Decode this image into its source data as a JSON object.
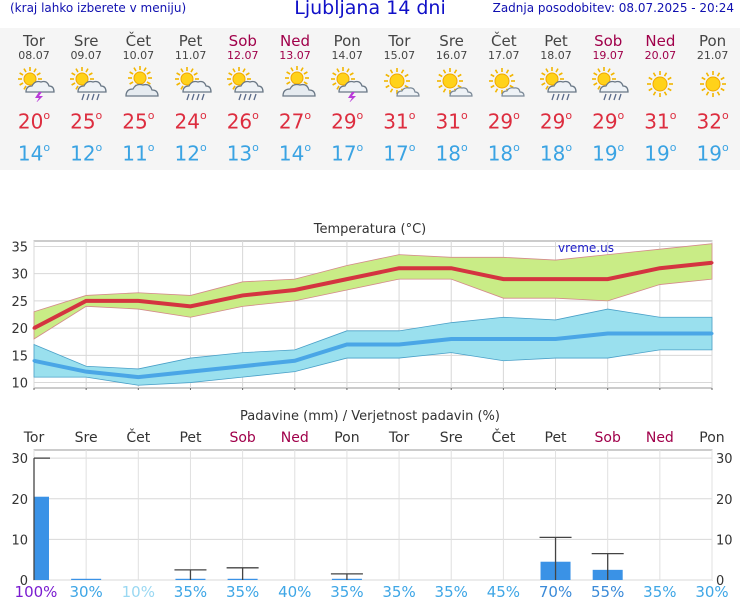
{
  "header": {
    "hint": "(kraj lahko izberete v meniju)",
    "title": "Ljubljana 14 dni",
    "updated": "Zadnja posodobitev: 08.07.2025 - 20:24"
  },
  "days": [
    {
      "name": "Tor",
      "date": "08.07",
      "weekend": false,
      "icon": "sun-cloud-thunder-icon",
      "max": "20",
      "min": "14"
    },
    {
      "name": "Sre",
      "date": "09.07",
      "weekend": false,
      "icon": "sun-cloud-rain-icon",
      "max": "25",
      "min": "12"
    },
    {
      "name": "Čet",
      "date": "10.07",
      "weekend": false,
      "icon": "sun-cloud-icon",
      "max": "25",
      "min": "11"
    },
    {
      "name": "Pet",
      "date": "11.07",
      "weekend": false,
      "icon": "sun-cloud-rain-icon",
      "max": "24",
      "min": "12"
    },
    {
      "name": "Sob",
      "date": "12.07",
      "weekend": true,
      "icon": "sun-cloud-rain-icon",
      "max": "26",
      "min": "13"
    },
    {
      "name": "Ned",
      "date": "13.07",
      "weekend": true,
      "icon": "sun-cloud-icon",
      "max": "27",
      "min": "14"
    },
    {
      "name": "Pon",
      "date": "14.07",
      "weekend": false,
      "icon": "sun-cloud-thunder-icon",
      "max": "29",
      "min": "17"
    },
    {
      "name": "Tor",
      "date": "15.07",
      "weekend": false,
      "icon": "sun-small-cloud-icon",
      "max": "31",
      "min": "17"
    },
    {
      "name": "Sre",
      "date": "16.07",
      "weekend": false,
      "icon": "sun-small-cloud-icon",
      "max": "31",
      "min": "18"
    },
    {
      "name": "Čet",
      "date": "17.07",
      "weekend": false,
      "icon": "sun-small-cloud-icon",
      "max": "29",
      "min": "18"
    },
    {
      "name": "Pet",
      "date": "18.07",
      "weekend": false,
      "icon": "sun-cloud-rain-icon",
      "max": "29",
      "min": "18"
    },
    {
      "name": "Sob",
      "date": "19.07",
      "weekend": true,
      "icon": "sun-cloud-rain-icon",
      "max": "29",
      "min": "19"
    },
    {
      "name": "Ned",
      "date": "20.07",
      "weekend": true,
      "icon": "sun-icon",
      "max": "31",
      "min": "19"
    },
    {
      "name": "Pon",
      "date": "21.07",
      "weekend": false,
      "icon": "sun-icon",
      "max": "32",
      "min": "19"
    }
  ],
  "chart_data": [
    {
      "type": "line",
      "title": "Temperatura (°C)",
      "watermark": "vreme.us",
      "ylim": [
        9,
        36
      ],
      "yticks": [
        10,
        15,
        20,
        25,
        30,
        35
      ],
      "grid": true,
      "categories": [
        "Tor",
        "Sre",
        "Čet",
        "Pet",
        "Sob",
        "Ned",
        "Pon",
        "Tor",
        "Sre",
        "Čet",
        "Pet",
        "Sob",
        "Ned",
        "Pon"
      ],
      "series": [
        {
          "role": "max",
          "color": "#d43440",
          "values": [
            20,
            25,
            25,
            24,
            26,
            27,
            29,
            31,
            31,
            29,
            29,
            29,
            31,
            32
          ],
          "band_low": [
            18,
            24,
            23.5,
            22,
            24,
            25,
            27,
            29,
            29,
            25.5,
            25.5,
            25,
            28,
            29
          ],
          "band_high": [
            23,
            26,
            26.5,
            26,
            28.5,
            29,
            31.5,
            33.5,
            33,
            33,
            32.5,
            33.5,
            34.5,
            35.5
          ],
          "band_color": "#c9ec86"
        },
        {
          "role": "min",
          "color": "#4aa6e6",
          "values": [
            14,
            12,
            11,
            12,
            13,
            14,
            17,
            17,
            18,
            18,
            18,
            19,
            19,
            19
          ],
          "band_low": [
            11,
            11,
            9.5,
            10,
            11,
            12,
            14.5,
            14.5,
            15.5,
            14,
            14.5,
            14.5,
            16,
            16
          ],
          "band_high": [
            17,
            13,
            12.5,
            14.5,
            15.5,
            16,
            19.5,
            19.5,
            21,
            22,
            21.5,
            23.5,
            22,
            22
          ],
          "band_color": "#9ae0ee"
        }
      ]
    },
    {
      "type": "bar",
      "title": "Padavine (mm) / Verjetnost padavin (%)",
      "ylim": [
        0,
        32
      ],
      "yticks": [
        0,
        10,
        20,
        30
      ],
      "grid": true,
      "categories": [
        "Tor",
        "Sre",
        "Čet",
        "Pet",
        "Sob",
        "Ned",
        "Pon",
        "Tor",
        "Sre",
        "Čet",
        "Pet",
        "Sob",
        "Ned",
        "Pon"
      ],
      "bar_color": "#3a92e6",
      "values": [
        20.5,
        0.3,
        0,
        0.3,
        0.3,
        0,
        0.3,
        0,
        0,
        0,
        4.5,
        2.5,
        0,
        0
      ],
      "error_max": [
        30,
        0,
        0,
        2.5,
        3,
        0,
        1.5,
        0,
        0,
        0,
        10.5,
        6.5,
        0,
        0
      ],
      "probability": [
        "100%",
        "30%",
        "10%",
        "35%",
        "35%",
        "40%",
        "35%",
        "35%",
        "35%",
        "45%",
        "70%",
        "55%",
        "35%",
        "30%"
      ],
      "probability_colors": [
        "#7a1cd0",
        "#3ea6e6",
        "#9ad8f2",
        "#3ea6e6",
        "#3ea6e6",
        "#3ea6e6",
        "#3ea6e6",
        "#3ea6e6",
        "#3ea6e6",
        "#3ea6e6",
        "#3a8ad8",
        "#3a8ad8",
        "#3ea6e6",
        "#3ea6e6"
      ]
    }
  ],
  "colors": {
    "weekend": "#a0004a",
    "weekday": "#444444"
  }
}
